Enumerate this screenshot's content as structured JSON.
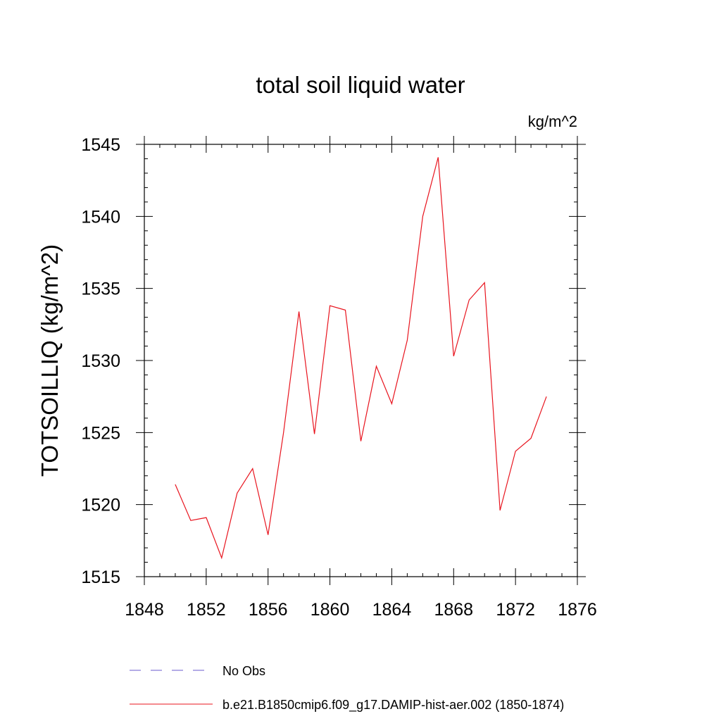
{
  "chart_data": {
    "type": "line",
    "title": "total soil liquid water",
    "units_label": "kg/m^2",
    "ylabel": "TOTSOILLIQ  (kg/m^2)",
    "xlabel": "",
    "xlim": [
      1848,
      1876
    ],
    "ylim": [
      1515,
      1545
    ],
    "x_ticks": [
      1848,
      1852,
      1856,
      1860,
      1864,
      1868,
      1872,
      1876
    ],
    "y_ticks": [
      1515,
      1520,
      1525,
      1530,
      1535,
      1540,
      1545
    ],
    "x_minor_step": 1,
    "y_minor_step": 1,
    "grid": false,
    "legend_position": "bottom",
    "series": [
      {
        "name": "b.e21.B1850cmip6.f09_g17.DAMIP-hist-aer.002 (1850-1874)",
        "color": "#e8141e",
        "style": "solid",
        "x": [
          1850,
          1851,
          1852,
          1853,
          1854,
          1855,
          1856,
          1857,
          1858,
          1859,
          1860,
          1861,
          1862,
          1863,
          1864,
          1865,
          1866,
          1867,
          1868,
          1869,
          1870,
          1871,
          1872,
          1873,
          1874
        ],
        "y": [
          1521.4,
          1518.9,
          1519.1,
          1516.3,
          1520.8,
          1522.5,
          1517.9,
          1525.0,
          1533.4,
          1524.9,
          1533.8,
          1533.5,
          1524.4,
          1529.6,
          1527.0,
          1531.4,
          1540.0,
          1544.1,
          1530.3,
          1534.2,
          1535.4,
          1519.6,
          1523.7,
          1524.6,
          1527.5
        ]
      }
    ],
    "legend": [
      {
        "label": "No Obs",
        "color": "#6a5acd",
        "style": "dashed"
      },
      {
        "label": "b.e21.B1850cmip6.f09_g17.DAMIP-hist-aer.002 (1850-1874)",
        "color": "#e8141e",
        "style": "solid"
      }
    ]
  }
}
